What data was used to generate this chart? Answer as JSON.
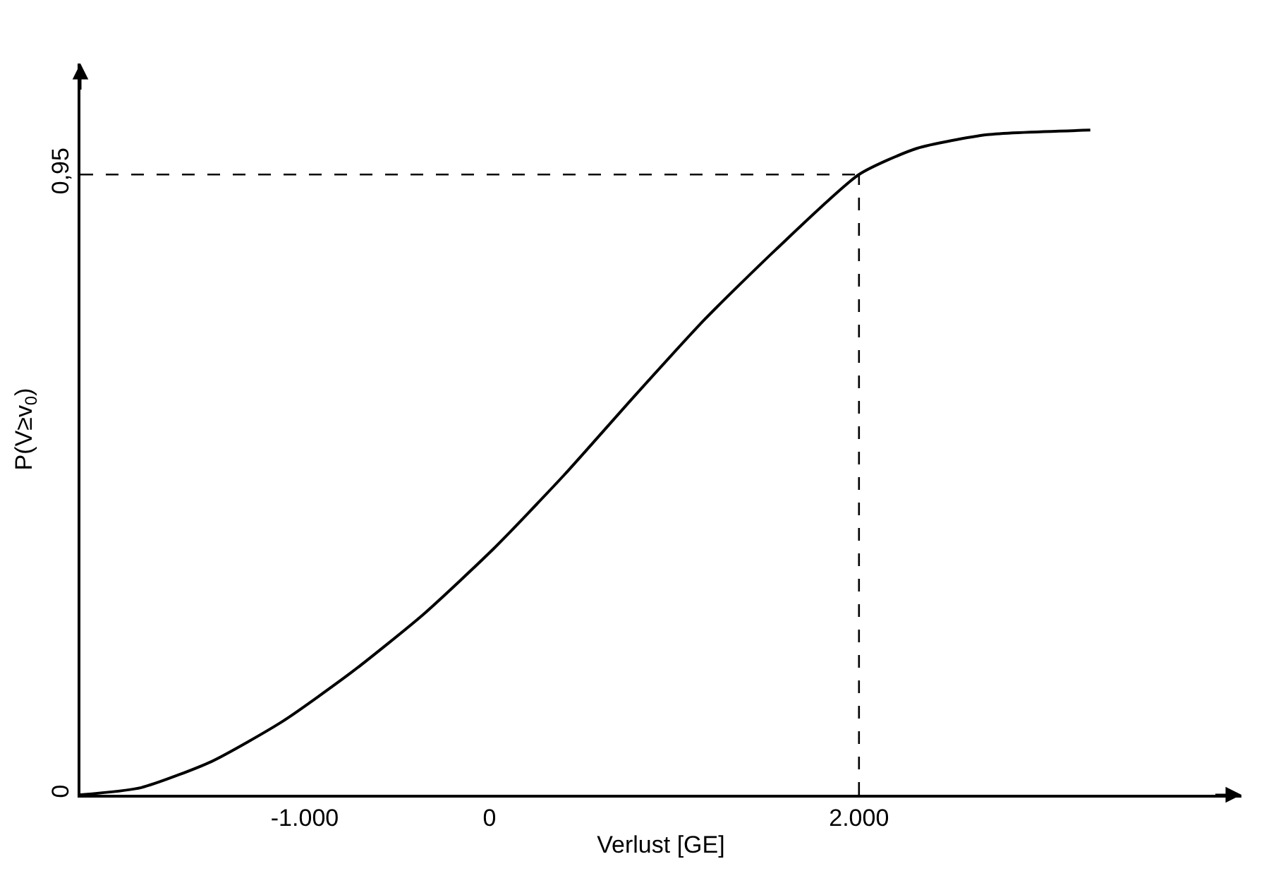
{
  "chart_data": {
    "type": "line",
    "xlabel": "Verlust [GE]",
    "ylabel": "P(V≥v$_{0}$)",
    "x": [
      -2214,
      -1885,
      -1504,
      -1122,
      -740,
      -359,
      23,
      405,
      786,
      1168,
      1550,
      2000,
      2313,
      2695,
      3252
    ],
    "series": [
      {
        "color": "#000000",
        "values": [
          0,
          0.011,
          0.051,
          0.112,
          0.189,
          0.276,
          0.377,
          0.49,
          0.611,
          0.729,
          0.835,
          0.95,
          0.99,
          1.011,
          1.018
        ]
      }
    ],
    "xlim": [
      -2214,
      4070
    ],
    "ylim": [
      0,
      1.12
    ],
    "xticks": [
      {
        "value": -1000,
        "label": "-1.000"
      },
      0,
      {
        "value": 2000,
        "label": "2.000"
      }
    ],
    "yticks": [
      0,
      {
        "value": 0.95,
        "label": "0,95"
      }
    ],
    "ref_lines": [
      {
        "axis": "x",
        "value": 2000,
        "color": "#000000",
        "line_style": "dashed"
      },
      {
        "axis": "y",
        "value": 0.95,
        "color": "#000000",
        "line_style": "dashed"
      }
    ],
    "legend": false,
    "marker": "none",
    "line_style": "solid"
  }
}
